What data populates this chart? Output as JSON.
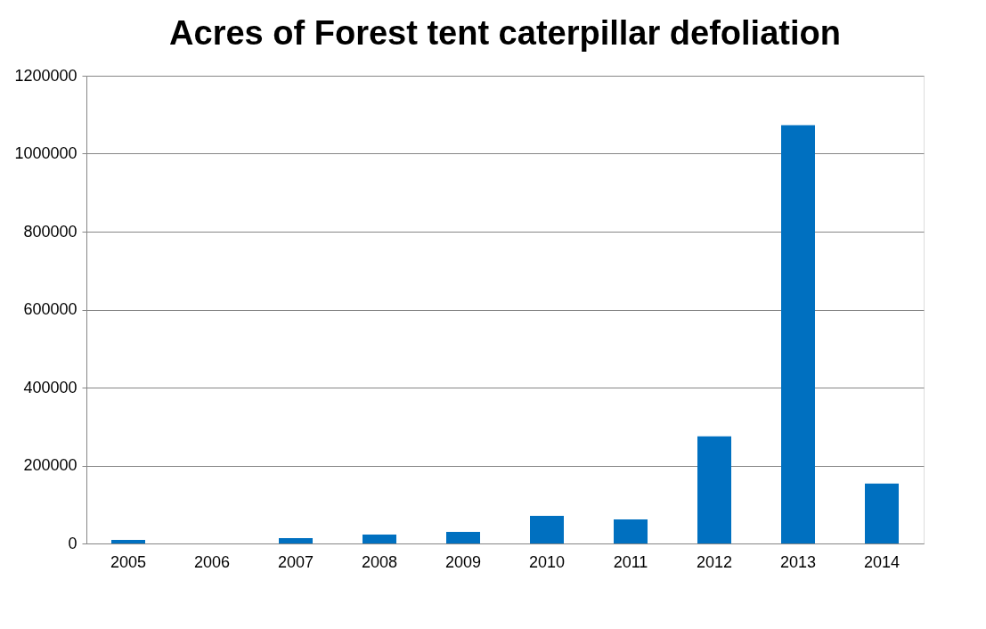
{
  "chart_data": {
    "type": "bar",
    "title": "Acres of Forest  tent caterpillar defoliation",
    "categories": [
      "2005",
      "2006",
      "2007",
      "2008",
      "2009",
      "2010",
      "2011",
      "2012",
      "2013",
      "2014"
    ],
    "series": [
      {
        "color": "#0070c0",
        "values": [
          9000,
          0,
          14000,
          23000,
          30000,
          71000,
          62000,
          275000,
          1073000,
          154000
        ]
      }
    ],
    "ylim": [
      0,
      1200000
    ],
    "yticks": [
      0,
      200000,
      400000,
      600000,
      800000,
      1000000,
      1200000
    ],
    "grid": "y",
    "legend": false
  }
}
